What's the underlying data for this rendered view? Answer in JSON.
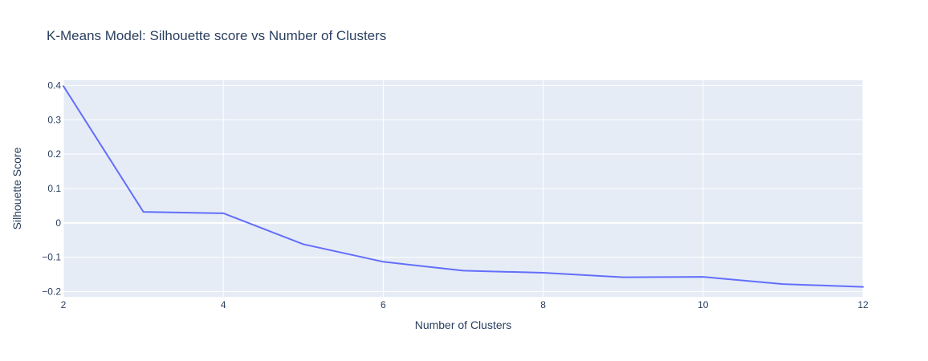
{
  "chart_data": {
    "type": "line",
    "title": "K-Means Model: Silhouette score vs Number of Clusters",
    "xlabel": "Number of Clusters",
    "ylabel": "Silhouette Score",
    "xlim": [
      2,
      12
    ],
    "ylim": [
      -0.215,
      0.415
    ],
    "xticks": [
      2,
      4,
      6,
      8,
      10,
      12
    ],
    "xtick_labels": [
      "2",
      "4",
      "6",
      "8",
      "10",
      "12"
    ],
    "yticks": [
      -0.2,
      -0.1,
      0,
      0.1,
      0.2,
      0.3,
      0.4
    ],
    "ytick_labels": [
      "−0.2",
      "−0.1",
      "0",
      "0.1",
      "0.2",
      "0.3",
      "0.4"
    ],
    "grid": true,
    "x": [
      2,
      3,
      4,
      5,
      6,
      7,
      8,
      9,
      10,
      11,
      12
    ],
    "y": [
      0.398,
      0.032,
      0.028,
      -0.062,
      -0.113,
      -0.139,
      -0.145,
      -0.158,
      -0.157,
      -0.178,
      -0.186
    ],
    "colors": {
      "line": "#636efa",
      "plot_bg": "#e5ecf6",
      "grid": "#ffffff",
      "text": "#2a3f5f"
    }
  }
}
